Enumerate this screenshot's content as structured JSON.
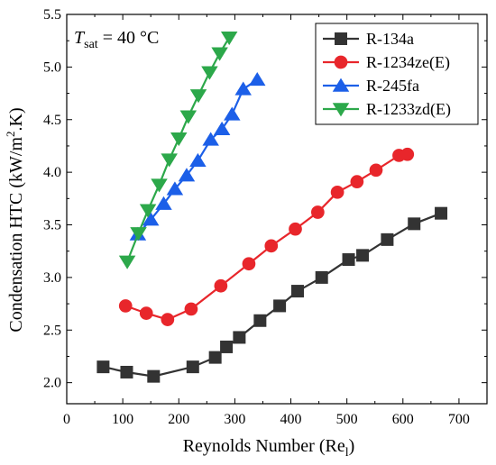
{
  "chart_data": {
    "type": "line",
    "xlabel": "Reynolds Number (Re",
    "xlabel_sub": "l",
    "xlabel_close": ")",
    "ylabel": "Condensation HTC (kW/m",
    "ylabel_sup": "2",
    "ylabel_close": ".K)",
    "annotation": {
      "prefix": "T",
      "sub": "sat",
      "suffix": " = 40 °C"
    },
    "xlim": [
      0,
      750
    ],
    "ylim": [
      1.8,
      5.5
    ],
    "xticks": [
      0,
      100,
      200,
      300,
      400,
      500,
      600,
      700
    ],
    "yticks": [
      2.0,
      2.5,
      3.0,
      3.5,
      4.0,
      4.5,
      5.0,
      5.5
    ],
    "legend_position": "top-right",
    "grid": false,
    "series": [
      {
        "name": "R-134a",
        "color": "#333333",
        "marker": "square",
        "x": [
          65,
          107,
          155,
          225,
          265,
          285,
          308,
          345,
          380,
          412,
          455,
          503,
          528,
          572,
          620,
          668
        ],
        "y": [
          2.15,
          2.1,
          2.06,
          2.15,
          2.24,
          2.34,
          2.43,
          2.59,
          2.73,
          2.87,
          3.0,
          3.17,
          3.21,
          3.36,
          3.51,
          3.61
        ]
      },
      {
        "name": "R-1234ze(E)",
        "color": "#e8262b",
        "marker": "circle",
        "x": [
          105,
          142,
          180,
          222,
          275,
          325,
          365,
          408,
          448,
          483,
          518,
          552,
          593,
          608
        ],
        "y": [
          2.73,
          2.66,
          2.6,
          2.7,
          2.92,
          3.13,
          3.3,
          3.46,
          3.62,
          3.81,
          3.91,
          4.02,
          4.16,
          4.17
        ]
      },
      {
        "name": "R-245fa",
        "color": "#1c5fe8",
        "marker": "triangle-up",
        "x": [
          127,
          150,
          173,
          193,
          214,
          234,
          257,
          277,
          295,
          315,
          340
        ],
        "y": [
          3.41,
          3.55,
          3.7,
          3.84,
          3.97,
          4.11,
          4.31,
          4.41,
          4.55,
          4.79,
          4.88
        ]
      },
      {
        "name": "R-1233zd(E)",
        "color": "#2ca84a",
        "marker": "triangle-down",
        "x": [
          108,
          128,
          145,
          165,
          183,
          200,
          217,
          235,
          255,
          273,
          290
        ],
        "y": [
          3.15,
          3.42,
          3.64,
          3.88,
          4.12,
          4.32,
          4.53,
          4.73,
          4.95,
          5.13,
          5.28
        ]
      }
    ]
  }
}
